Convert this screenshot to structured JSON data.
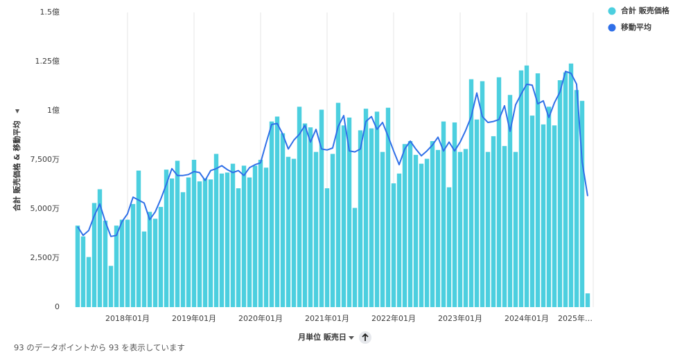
{
  "chart_data": {
    "type": "bar",
    "y_label": "合計 販売価格 & 移動平均",
    "x_label": "月単位 販売日",
    "footer": "93 のデータポイントから 93 を表示しています",
    "xlim": [
      -0.5,
      92.5
    ],
    "xticks": [
      {
        "value": 9,
        "label": "2018年01月"
      },
      {
        "value": 21,
        "label": "2019年01月"
      },
      {
        "value": 33,
        "label": "2020年01月"
      },
      {
        "value": 45,
        "label": "2021年01月"
      },
      {
        "value": 57,
        "label": "2022年01月"
      },
      {
        "value": 69,
        "label": "2023年01月"
      },
      {
        "value": 81,
        "label": "2024年01月"
      },
      {
        "value": 93,
        "label": "2025年…"
      }
    ],
    "ylim": [
      0,
      150000000
    ],
    "yticks": [
      0,
      {
        "value": 25000000,
        "label": "2,500万"
      },
      {
        "value": 50000000,
        "label": "5,000万"
      },
      {
        "value": 75000000,
        "label": "7,500万"
      },
      {
        "value": 100000000,
        "label": "1億"
      },
      {
        "value": 125000000,
        "label": "1.25億"
      },
      {
        "value": 150000000,
        "label": "1.5億"
      }
    ],
    "grid": "x",
    "legend": "top-right",
    "series": [
      {
        "name": "合計 販売価格",
        "type": "bar",
        "color": "#4ccfdf",
        "values": [
          41500000,
          36000000,
          25500000,
          53000000,
          60000000,
          44000000,
          21000000,
          41500000,
          44500000,
          44500000,
          52500000,
          69500000,
          38500000,
          48500000,
          45000000,
          51000000,
          70000000,
          65500000,
          74500000,
          58500000,
          66000000,
          75000000,
          64000000,
          65500000,
          65000000,
          78000000,
          68000000,
          68500000,
          73000000,
          60500000,
          72000000,
          66000000,
          72000000,
          75000000,
          71000000,
          94500000,
          97000000,
          88500000,
          76500000,
          75500000,
          102000000,
          93500000,
          91500000,
          79000000,
          100500000,
          60500000,
          78000000,
          104000000,
          92500000,
          96500000,
          50500000,
          90000000,
          101000000,
          91000000,
          99500000,
          79000000,
          101500000,
          63000000,
          68000000,
          83000000,
          84500000,
          77500000,
          73000000,
          75500000,
          84500000,
          80000000,
          94500000,
          61000000,
          94000000,
          79000000,
          80500000,
          116000000,
          95500000,
          115000000,
          79000000,
          87000000,
          117000000,
          82000000,
          108000000,
          79000000,
          120500000,
          123000000,
          97500000,
          119000000,
          93000000,
          102000000,
          92500000,
          115500000,
          119500000,
          124000000,
          110500000,
          105000000,
          7000000
        ]
      },
      {
        "name": "移動平均",
        "type": "line",
        "color": "#2f6fe8",
        "values": [
          41000000,
          36500000,
          39000000,
          46500000,
          52500000,
          43500000,
          36000000,
          36500000,
          43500000,
          47500000,
          56000000,
          54500000,
          53000000,
          44500000,
          48500000,
          55000000,
          62500000,
          70500000,
          67000000,
          67000000,
          67500000,
          69000000,
          68500000,
          64500000,
          69500000,
          70500000,
          72000000,
          70000000,
          68500000,
          69500000,
          67000000,
          71000000,
          72500000,
          73500000,
          83500000,
          93000000,
          93500000,
          88000000,
          80500000,
          85000000,
          88000000,
          92500000,
          84000000,
          90500000,
          80500000,
          80000000,
          81000000,
          92000000,
          97500000,
          79500000,
          79000000,
          80500000,
          94500000,
          97000000,
          90500000,
          94000000,
          87000000,
          79500000,
          72500000,
          80500000,
          84500000,
          80500000,
          77000000,
          79500000,
          82500000,
          86500000,
          79500000,
          84000000,
          79500000,
          84000000,
          90000000,
          97000000,
          109000000,
          97000000,
          94000000,
          94500000,
          95500000,
          102500000,
          89500000,
          103000000,
          108500000,
          113500000,
          113000000,
          103500000,
          105000000,
          96500000,
          104000000,
          109500000,
          120000000,
          119000000,
          113500000,
          74000000,
          56500000
        ]
      }
    ]
  }
}
